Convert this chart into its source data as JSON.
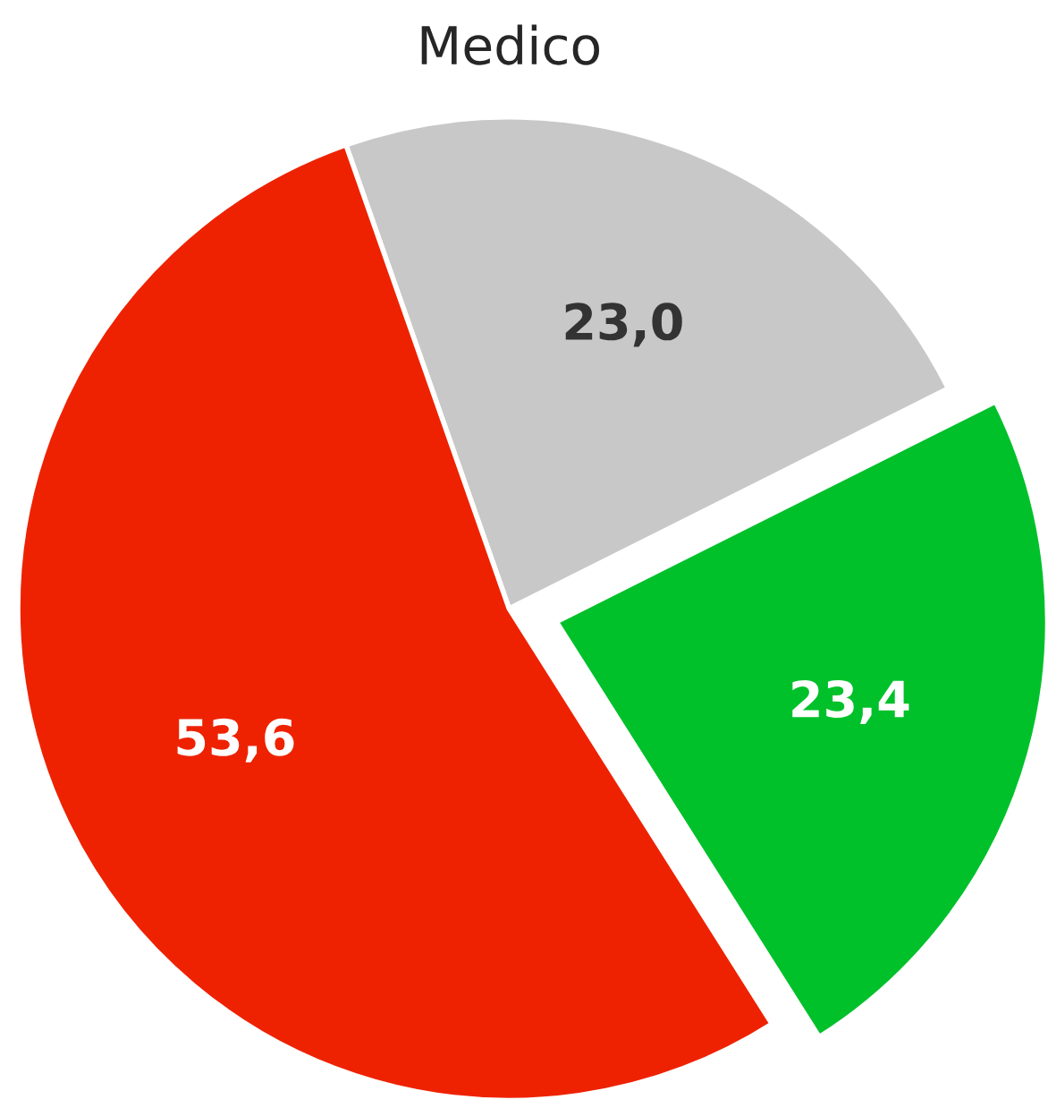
{
  "chart_data": {
    "type": "pie",
    "title": "Medico",
    "categories": [
      null,
      null,
      null
    ],
    "values": [
      23.0,
      23.4,
      53.6
    ],
    "value_labels": [
      "23,0",
      "23,4",
      "53,6"
    ],
    "colors": [
      "#c8c8c8",
      "#00c12a",
      "#ee2200"
    ],
    "legend": false
  }
}
